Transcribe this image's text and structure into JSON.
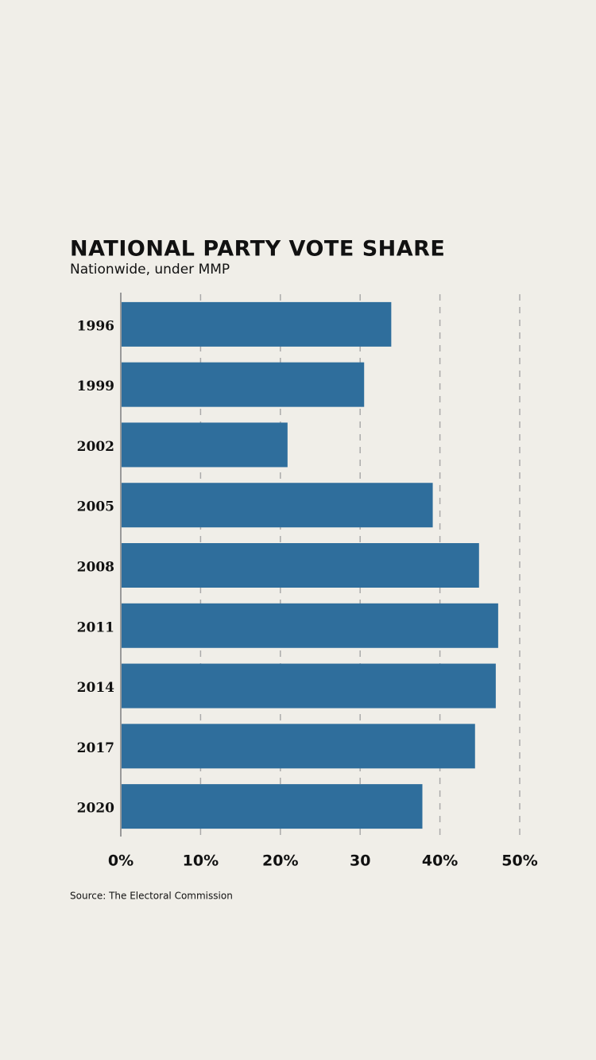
{
  "chart_data": {
    "type": "bar",
    "orientation": "horizontal",
    "title": "NATIONAL PARTY VOTE SHARE",
    "subtitle": "Nationwide, under MMP",
    "source": "Source: The Electoral Commission",
    "categories": [
      "1996",
      "1999",
      "2002",
      "2005",
      "2008",
      "2011",
      "2014",
      "2017",
      "2020"
    ],
    "values": [
      33.9,
      30.5,
      20.9,
      39.1,
      44.9,
      47.3,
      47.0,
      44.4,
      37.8
    ],
    "color": "#2f6e9c",
    "xlim": [
      0,
      50
    ],
    "xticks": [
      {
        "value": 0,
        "label": "0%"
      },
      {
        "value": 10,
        "label": "10%"
      },
      {
        "value": 20,
        "label": "20%"
      },
      30,
      {
        "value": 40,
        "label": "40%"
      },
      {
        "value": 50,
        "label": "50%"
      }
    ],
    "grid": true
  }
}
